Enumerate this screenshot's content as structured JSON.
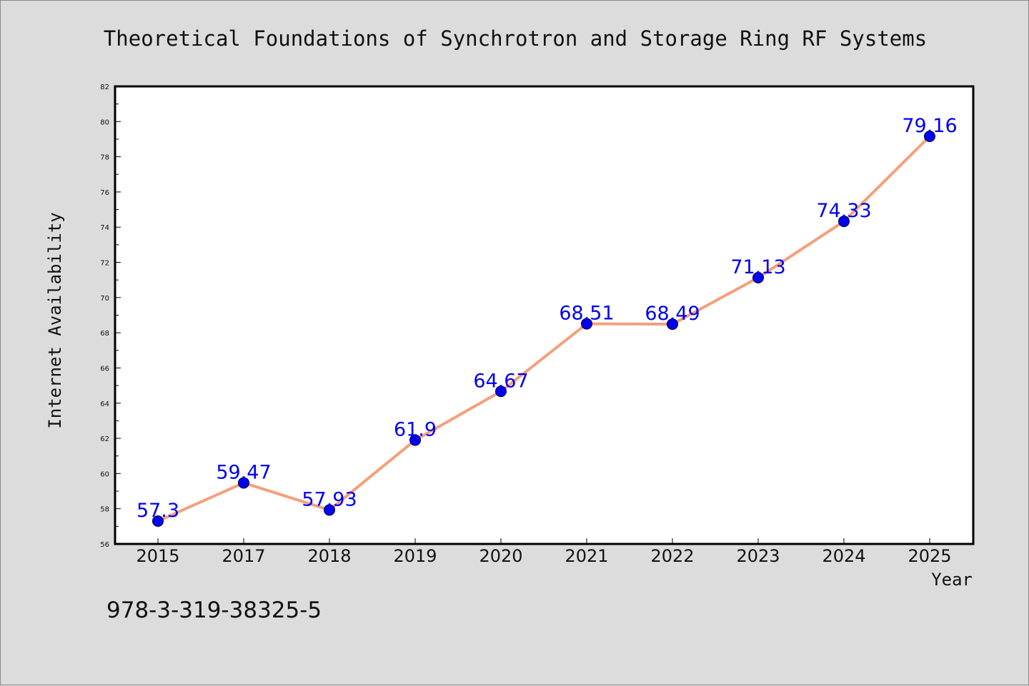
{
  "isbn": "978-3-319-38325-5",
  "colors": {
    "background": "#dcdcdc",
    "plot_background": "#ffffff",
    "line": "#f4a07c",
    "marker": "#0000ee",
    "data_label": "#0000ee",
    "text": "#111111"
  },
  "chart_data": {
    "type": "line",
    "title": "Theoretical Foundations of Synchrotron and Storage Ring RF Systems",
    "xlabel": "Year",
    "ylabel": "Internet Availability",
    "categories": [
      "2015",
      "2017",
      "2018",
      "2019",
      "2020",
      "2021",
      "2022",
      "2023",
      "2024",
      "2025"
    ],
    "series": [
      {
        "values": [
          57.3,
          59.47,
          57.93,
          61.9,
          64.67,
          68.51,
          68.49,
          71.13,
          74.33,
          79.16
        ],
        "labels": [
          "57.3",
          "59.47",
          "57.93",
          "61.9",
          "64.67",
          "68.51",
          "68.49",
          "71.13",
          "74.33",
          "79.16"
        ]
      }
    ],
    "ylim": [
      56,
      82
    ],
    "yticks": [
      56,
      58,
      60,
      62,
      64,
      66,
      68,
      70,
      72,
      74,
      76,
      78,
      80,
      82
    ],
    "grid": false,
    "legend": "none"
  }
}
